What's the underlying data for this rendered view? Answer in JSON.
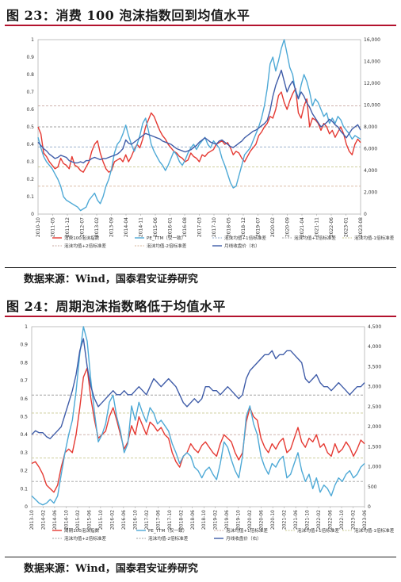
{
  "chart_data": [
    {
      "type": "line",
      "title": "图 23：消费 100 泡沫指数回到均值水平",
      "source": "数据来源：Wind，国泰君安证券研究",
      "x_ticks": [
        "2010-10",
        "2011-05",
        "2011-12",
        "2012-07",
        "2013-02",
        "2013-09",
        "2014-04",
        "2014-11",
        "2015-06",
        "2016-01",
        "2016-08",
        "2017-03",
        "2017-10",
        "2018-05",
        "2018-12",
        "2019-07",
        "2020-02",
        "2020-09",
        "2021-04",
        "2021-11",
        "2022-06",
        "2023-01",
        "2023-08"
      ],
      "y_left_ticks": [
        "0",
        "0.1",
        "0.2",
        "0.3",
        "0.4",
        "0.5",
        "0.6",
        "0.7",
        "0.8",
        "0.9",
        "1"
      ],
      "y_right_ticks": [
        "0",
        "2,000",
        "4,000",
        "6,000",
        "8,000",
        "10,000",
        "12,000",
        "14,000",
        "16,000"
      ],
      "ylim_left": [
        0,
        1
      ],
      "ylim_right": [
        0,
        16000
      ],
      "reference_lines": [
        {
          "name": "泡沫均值+2倍标准差",
          "value": 0.62,
          "color": "#c8a8a0"
        },
        {
          "name": "泡沫均值+1倍标准差",
          "value": 0.5,
          "color": "#a0a0a0"
        },
        {
          "name": "泡沫均值",
          "value": 0.385,
          "color": "#8fa8c8"
        },
        {
          "name": "泡沫均值-1倍标准差",
          "value": 0.27,
          "color": "#c8c890"
        },
        {
          "name": "泡沫均值-2倍标准差",
          "value": 0.16,
          "color": "#d6b49a"
        }
      ],
      "series": [
        {
          "name": "消费100泡沫指数",
          "axis": "left",
          "color": "#e53a33",
          "values": [
            0.5,
            0.46,
            0.35,
            0.33,
            0.3,
            0.28,
            0.26,
            0.27,
            0.32,
            0.29,
            0.28,
            0.26,
            0.33,
            0.28,
            0.27,
            0.25,
            0.24,
            0.27,
            0.3,
            0.36,
            0.4,
            0.42,
            0.35,
            0.3,
            0.26,
            0.24,
            0.25,
            0.3,
            0.31,
            0.32,
            0.3,
            0.34,
            0.3,
            0.33,
            0.37,
            0.4,
            0.38,
            0.43,
            0.5,
            0.54,
            0.58,
            0.56,
            0.52,
            0.48,
            0.45,
            0.43,
            0.4,
            0.38,
            0.36,
            0.35,
            0.33,
            0.32,
            0.3,
            0.31,
            0.35,
            0.33,
            0.32,
            0.3,
            0.34,
            0.33,
            0.35,
            0.36,
            0.37,
            0.4,
            0.41,
            0.42,
            0.4,
            0.41,
            0.38,
            0.34,
            0.36,
            0.35,
            0.32,
            0.3,
            0.33,
            0.36,
            0.38,
            0.4,
            0.45,
            0.47,
            0.5,
            0.52,
            0.56,
            0.55,
            0.6,
            0.68,
            0.7,
            0.64,
            0.6,
            0.65,
            0.69,
            0.72,
            0.58,
            0.55,
            0.62,
            0.66,
            0.5,
            0.55,
            0.54,
            0.52,
            0.48,
            0.52,
            0.5,
            0.46,
            0.48,
            0.44,
            0.47,
            0.5,
            0.46,
            0.4,
            0.36,
            0.34,
            0.4,
            0.43,
            0.41
          ]
        },
        {
          "name": "PE_TTM（仅一致）",
          "axis": "left",
          "color": "#4ea9d6",
          "values": [
            0.44,
            0.38,
            0.33,
            0.3,
            0.28,
            0.26,
            0.23,
            0.2,
            0.16,
            0.1,
            0.08,
            0.07,
            0.06,
            0.05,
            0.04,
            0.02,
            0.03,
            0.04,
            0.08,
            0.1,
            0.12,
            0.08,
            0.06,
            0.1,
            0.16,
            0.2,
            0.26,
            0.35,
            0.4,
            0.42,
            0.46,
            0.51,
            0.45,
            0.4,
            0.36,
            0.4,
            0.45,
            0.52,
            0.55,
            0.48,
            0.4,
            0.36,
            0.33,
            0.3,
            0.28,
            0.25,
            0.28,
            0.32,
            0.36,
            0.34,
            0.3,
            0.28,
            0.31,
            0.35,
            0.38,
            0.4,
            0.37,
            0.4,
            0.42,
            0.44,
            0.4,
            0.38,
            0.42,
            0.4,
            0.38,
            0.32,
            0.28,
            0.23,
            0.18,
            0.15,
            0.16,
            0.22,
            0.28,
            0.34,
            0.36,
            0.38,
            0.42,
            0.46,
            0.5,
            0.55,
            0.62,
            0.72,
            0.86,
            0.9,
            0.82,
            0.88,
            0.95,
            1.0,
            0.92,
            0.84,
            0.8,
            0.7,
            0.66,
            0.74,
            0.8,
            0.76,
            0.7,
            0.62,
            0.66,
            0.64,
            0.6,
            0.56,
            0.58,
            0.52,
            0.55,
            0.52,
            0.56,
            0.54,
            0.5,
            0.48,
            0.46,
            0.43,
            0.45,
            0.44,
            0.43
          ]
        },
        {
          "name": "月线收盘价（右）",
          "axis": "right",
          "color": "#3f5ca8",
          "values": [
            6600,
            6300,
            6000,
            5800,
            5500,
            5300,
            5100,
            5200,
            5400,
            5300,
            5200,
            4900,
            4800,
            4700,
            4700,
            4800,
            4700,
            4900,
            4900,
            5100,
            5200,
            5100,
            5000,
            5100,
            5100,
            5200,
            5300,
            5400,
            5500,
            5700,
            6000,
            6800,
            6500,
            6400,
            6600,
            6800,
            7000,
            7200,
            7400,
            7300,
            7200,
            7100,
            7000,
            6900,
            6700,
            6600,
            6500,
            6400,
            6200,
            6000,
            5900,
            5800,
            5700,
            5800,
            5900,
            6100,
            6300,
            6600,
            6800,
            7000,
            6800,
            6600,
            6500,
            6400,
            6700,
            6800,
            6600,
            6400,
            6200,
            6100,
            6300,
            6500,
            6700,
            7000,
            7200,
            7400,
            7600,
            7700,
            7900,
            8100,
            8300,
            8600,
            9500,
            10800,
            11800,
            12500,
            13200,
            12200,
            11200,
            11800,
            12200,
            11400,
            10600,
            11200,
            10800,
            10200,
            9800,
            9200,
            8800,
            8400,
            8000,
            8200,
            8400,
            8700,
            8500,
            8200,
            8000,
            7600,
            7300,
            7000,
            7400,
            7800,
            8000,
            8200,
            7700
          ]
        }
      ],
      "legend": [
        "消费100泡沫指数",
        "PE_TTM（仅一致）",
        "泡沫均值+1倍标准差",
        "泡沫均值+1倍标准差",
        "泡沫均值-1倍标准差",
        "泡沫均值+2倍标准差",
        "泡沫均值-2倍标准差",
        "月线收盘价（右）"
      ]
    },
    {
      "type": "line",
      "title": "图 24：周期泡沫指数略低于均值水平",
      "source": "数据来源：Wind，国泰君安证券研究",
      "x_ticks": [
        "2013-10",
        "2014-02",
        "2014-06",
        "2014-10",
        "2015-02",
        "2015-06",
        "2015-10",
        "2016-02",
        "2016-06",
        "2016-10",
        "2017-02",
        "2017-06",
        "2017-10",
        "2018-02",
        "2018-06",
        "2018-10",
        "2019-02",
        "2019-06",
        "2019-10",
        "2020-02",
        "2020-06",
        "2020-10",
        "2021-02",
        "2021-06",
        "2021-10",
        "2022-02",
        "2022-06",
        "2022-10",
        "2023-02",
        "2023-06"
      ],
      "y_left_ticks": [
        "0",
        "0.1",
        "0.2",
        "0.3",
        "0.4",
        "0.5",
        "0.6",
        "0.7",
        "0.8",
        "0.9",
        "1"
      ],
      "y_right_ticks": [
        "0",
        "500",
        "1,000",
        "1,500",
        "2,000",
        "2,500",
        "3,000",
        "3,500",
        "4,000",
        "4,500"
      ],
      "ylim_left": [
        0,
        1
      ],
      "ylim_right": [
        0,
        4500
      ],
      "reference_lines": [
        {
          "name": "泡沫均值+2倍标准差",
          "value": 0.62,
          "color": "#a0a0a0"
        },
        {
          "name": "泡沫均值+1倍标准差",
          "value": 0.52,
          "color": "#c8c890"
        },
        {
          "name": "泡沫均值",
          "value": 0.4,
          "color": "#c8a8a0"
        },
        {
          "name": "泡沫均值-1倍标准差",
          "value": 0.27,
          "color": "#c8c890"
        },
        {
          "name": "泡沫均值-2倍标准差",
          "value": 0.14,
          "color": "#a0a0a0"
        }
      ],
      "series": [
        {
          "name": "周期100泡沫指数",
          "axis": "left",
          "color": "#e53a33",
          "values": [
            0.24,
            0.25,
            0.22,
            0.18,
            0.12,
            0.1,
            0.08,
            0.12,
            0.22,
            0.3,
            0.32,
            0.3,
            0.4,
            0.55,
            0.72,
            0.77,
            0.6,
            0.48,
            0.38,
            0.4,
            0.42,
            0.5,
            0.55,
            0.48,
            0.4,
            0.32,
            0.36,
            0.45,
            0.4,
            0.5,
            0.45,
            0.4,
            0.47,
            0.45,
            0.42,
            0.44,
            0.4,
            0.38,
            0.3,
            0.25,
            0.22,
            0.28,
            0.3,
            0.35,
            0.32,
            0.3,
            0.34,
            0.36,
            0.33,
            0.3,
            0.28,
            0.35,
            0.4,
            0.38,
            0.36,
            0.3,
            0.26,
            0.3,
            0.47,
            0.55,
            0.5,
            0.48,
            0.38,
            0.33,
            0.3,
            0.35,
            0.32,
            0.36,
            0.38,
            0.3,
            0.32,
            0.38,
            0.44,
            0.36,
            0.33,
            0.38,
            0.36,
            0.4,
            0.33,
            0.35,
            0.3,
            0.28,
            0.35,
            0.3,
            0.32,
            0.36,
            0.33,
            0.28,
            0.32,
            0.37,
            0.35
          ]
        },
        {
          "name": "PE_TTM（仅一致）",
          "axis": "left",
          "color": "#4ea9d6",
          "values": [
            0.06,
            0.04,
            0.02,
            0.01,
            0.02,
            0.04,
            0.02,
            0.06,
            0.18,
            0.3,
            0.4,
            0.48,
            0.64,
            0.85,
            1.0,
            0.92,
            0.7,
            0.52,
            0.36,
            0.4,
            0.46,
            0.58,
            0.62,
            0.5,
            0.42,
            0.3,
            0.35,
            0.56,
            0.48,
            0.58,
            0.52,
            0.47,
            0.55,
            0.52,
            0.46,
            0.48,
            0.45,
            0.42,
            0.35,
            0.3,
            0.24,
            0.28,
            0.3,
            0.28,
            0.22,
            0.2,
            0.16,
            0.2,
            0.22,
            0.18,
            0.15,
            0.24,
            0.36,
            0.33,
            0.26,
            0.2,
            0.16,
            0.28,
            0.5,
            0.56,
            0.46,
            0.4,
            0.28,
            0.22,
            0.18,
            0.24,
            0.22,
            0.26,
            0.28,
            0.16,
            0.18,
            0.24,
            0.3,
            0.2,
            0.14,
            0.18,
            0.1,
            0.16,
            0.08,
            0.12,
            0.1,
            0.06,
            0.12,
            0.16,
            0.14,
            0.18,
            0.2,
            0.16,
            0.18,
            0.22,
            0.24
          ]
        },
        {
          "name": "月线收盘价（右）",
          "axis": "right",
          "color": "#3f5ca8",
          "values": [
            1800,
            1900,
            1850,
            1850,
            1750,
            1700,
            1800,
            1900,
            2000,
            2300,
            2600,
            2900,
            3300,
            3900,
            4200,
            3500,
            3000,
            2700,
            2500,
            2600,
            2700,
            2800,
            2900,
            2800,
            2800,
            2900,
            2800,
            2800,
            2900,
            3000,
            2900,
            2800,
            3000,
            3200,
            3100,
            3000,
            3100,
            3200,
            3100,
            3000,
            2800,
            2600,
            2500,
            2600,
            2700,
            2600,
            2700,
            3000,
            3000,
            2900,
            2900,
            2800,
            2900,
            3000,
            2900,
            2800,
            2700,
            2800,
            3200,
            3400,
            3500,
            3600,
            3700,
            3800,
            3800,
            3900,
            3700,
            3800,
            3800,
            3900,
            3900,
            3800,
            3700,
            3600,
            3200,
            3100,
            3200,
            3300,
            3100,
            3000,
            3000,
            2900,
            3000,
            3100,
            3000,
            2900,
            2800,
            2900,
            3000,
            3000,
            3100
          ]
        }
      ],
      "legend": [
        "周期100泡沫指数",
        "PE_TTM（仅一致）",
        "泡沫均值+1倍标准差",
        "泡沫均值+1倍标准差",
        "泡沫均值-1倍标准差",
        "泡沫均值+2倍标准差",
        "泡沫均值-2倍标准差",
        "月线收盘价（右）"
      ]
    }
  ]
}
